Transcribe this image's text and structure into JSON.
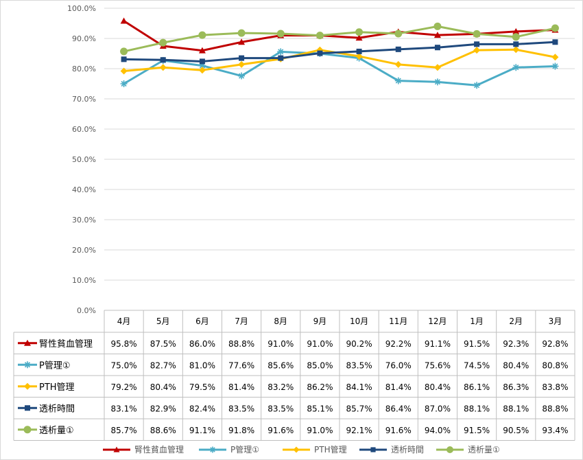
{
  "chart_data": {
    "type": "line",
    "title": "",
    "xlabel": "",
    "ylabel": "",
    "ylim": [
      0,
      100
    ],
    "y_tick_labels": [
      "0.0%",
      "10.0%",
      "20.0%",
      "30.0%",
      "40.0%",
      "50.0%",
      "60.0%",
      "70.0%",
      "80.0%",
      "90.0%",
      "100.0%"
    ],
    "grid": true,
    "legend_position": "bottom",
    "data_table": true,
    "categories": [
      "4月",
      "5月",
      "6月",
      "7月",
      "8月",
      "9月",
      "10月",
      "11月",
      "12月",
      "1月",
      "2月",
      "3月"
    ],
    "series": [
      {
        "name": "腎性貧血管理",
        "color": "#c00000",
        "marker": "triangle",
        "values": [
          95.8,
          87.5,
          86.0,
          88.8,
          91.0,
          91.0,
          90.2,
          92.2,
          91.1,
          91.5,
          92.3,
          92.8
        ],
        "labels": [
          "95.8%",
          "87.5%",
          "86.0%",
          "88.8%",
          "91.0%",
          "91.0%",
          "90.2%",
          "92.2%",
          "91.1%",
          "91.5%",
          "92.3%",
          "92.8%"
        ]
      },
      {
        "name": "P管理①",
        "color": "#4bacc6",
        "marker": "star",
        "values": [
          75.0,
          82.7,
          81.0,
          77.6,
          85.6,
          85.0,
          83.5,
          76.0,
          75.6,
          74.5,
          80.4,
          80.8
        ],
        "labels": [
          "75.0%",
          "82.7%",
          "81.0%",
          "77.6%",
          "85.6%",
          "85.0%",
          "83.5%",
          "76.0%",
          "75.6%",
          "74.5%",
          "80.4%",
          "80.8%"
        ]
      },
      {
        "name": "PTH管理",
        "color": "#ffc000",
        "marker": "diamond",
        "values": [
          79.2,
          80.4,
          79.5,
          81.4,
          83.2,
          86.2,
          84.1,
          81.4,
          80.4,
          86.1,
          86.3,
          83.8
        ],
        "labels": [
          "79.2%",
          "80.4%",
          "79.5%",
          "81.4%",
          "83.2%",
          "86.2%",
          "84.1%",
          "81.4%",
          "80.4%",
          "86.1%",
          "86.3%",
          "83.8%"
        ]
      },
      {
        "name": "透析時間",
        "color": "#1f497d",
        "marker": "square",
        "values": [
          83.1,
          82.9,
          82.4,
          83.5,
          83.5,
          85.1,
          85.7,
          86.4,
          87.0,
          88.1,
          88.1,
          88.8
        ],
        "labels": [
          "83.1%",
          "82.9%",
          "82.4%",
          "83.5%",
          "83.5%",
          "85.1%",
          "85.7%",
          "86.4%",
          "87.0%",
          "88.1%",
          "88.1%",
          "88.8%"
        ]
      },
      {
        "name": "透析量①",
        "color": "#9bbb59",
        "marker": "circle",
        "values": [
          85.7,
          88.6,
          91.1,
          91.8,
          91.6,
          91.0,
          92.1,
          91.6,
          94.0,
          91.5,
          90.5,
          93.4
        ],
        "labels": [
          "85.7%",
          "88.6%",
          "91.1%",
          "91.8%",
          "91.6%",
          "91.0%",
          "92.1%",
          "91.6%",
          "94.0%",
          "91.5%",
          "90.5%",
          "93.4%"
        ]
      }
    ]
  }
}
